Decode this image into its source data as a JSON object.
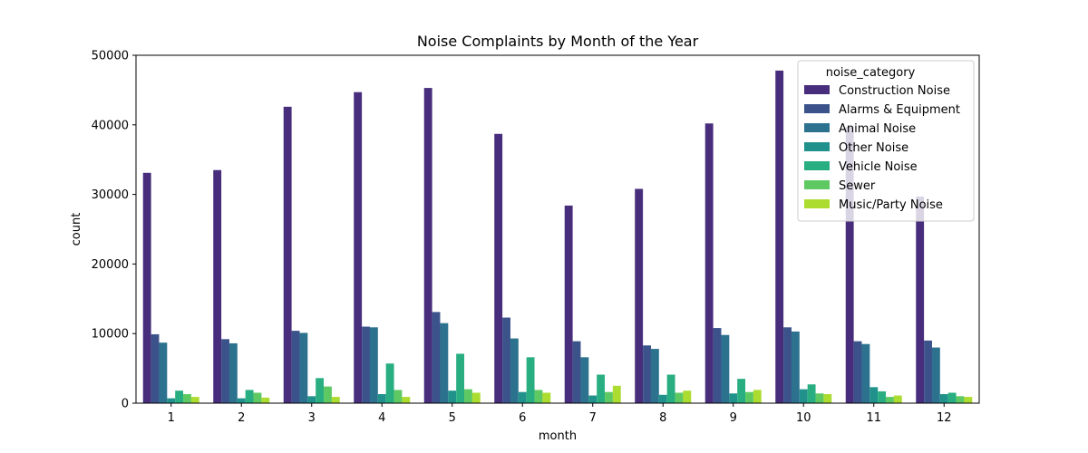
{
  "chart_data": {
    "type": "bar",
    "title": "Noise Complaints by Month of the Year",
    "xlabel": "month",
    "ylabel": "count",
    "ylim": [
      0,
      50000
    ],
    "yticks": [
      0,
      10000,
      20000,
      30000,
      40000,
      50000
    ],
    "categories": [
      "1",
      "2",
      "3",
      "4",
      "5",
      "6",
      "7",
      "8",
      "9",
      "10",
      "11",
      "12"
    ],
    "legend_title": "noise_category",
    "legend_position": "top-right",
    "grid": false,
    "series": [
      {
        "name": "Construction Noise",
        "color": "#472d7b",
        "values": [
          33100,
          33500,
          42600,
          44700,
          45300,
          38700,
          28400,
          30800,
          40200,
          47800,
          39700,
          29700
        ]
      },
      {
        "name": "Alarms & Equipment",
        "color": "#3b528b",
        "values": [
          9900,
          9200,
          10400,
          11000,
          13100,
          12300,
          8900,
          8300,
          10800,
          10900,
          8900,
          9000
        ]
      },
      {
        "name": "Animal Noise",
        "color": "#2c728e",
        "values": [
          8700,
          8600,
          10100,
          10900,
          11500,
          9300,
          6600,
          7800,
          9800,
          10300,
          8500,
          8000
        ]
      },
      {
        "name": "Other Noise",
        "color": "#21918c",
        "values": [
          700,
          700,
          1000,
          1300,
          1800,
          1600,
          1100,
          1200,
          1400,
          2000,
          2300,
          1300
        ]
      },
      {
        "name": "Vehicle Noise",
        "color": "#28ae80",
        "values": [
          1800,
          1900,
          3600,
          5700,
          7100,
          6600,
          4100,
          4100,
          3500,
          2700,
          1700,
          1500
        ]
      },
      {
        "name": "Sewer",
        "color": "#5ec962",
        "values": [
          1300,
          1500,
          2400,
          1900,
          2000,
          1900,
          1600,
          1500,
          1600,
          1400,
          900,
          1000
        ]
      },
      {
        "name": "Music/Party Noise",
        "color": "#addc30",
        "values": [
          900,
          800,
          900,
          900,
          1500,
          1500,
          2500,
          1800,
          1900,
          1300,
          1100,
          900
        ]
      }
    ]
  }
}
